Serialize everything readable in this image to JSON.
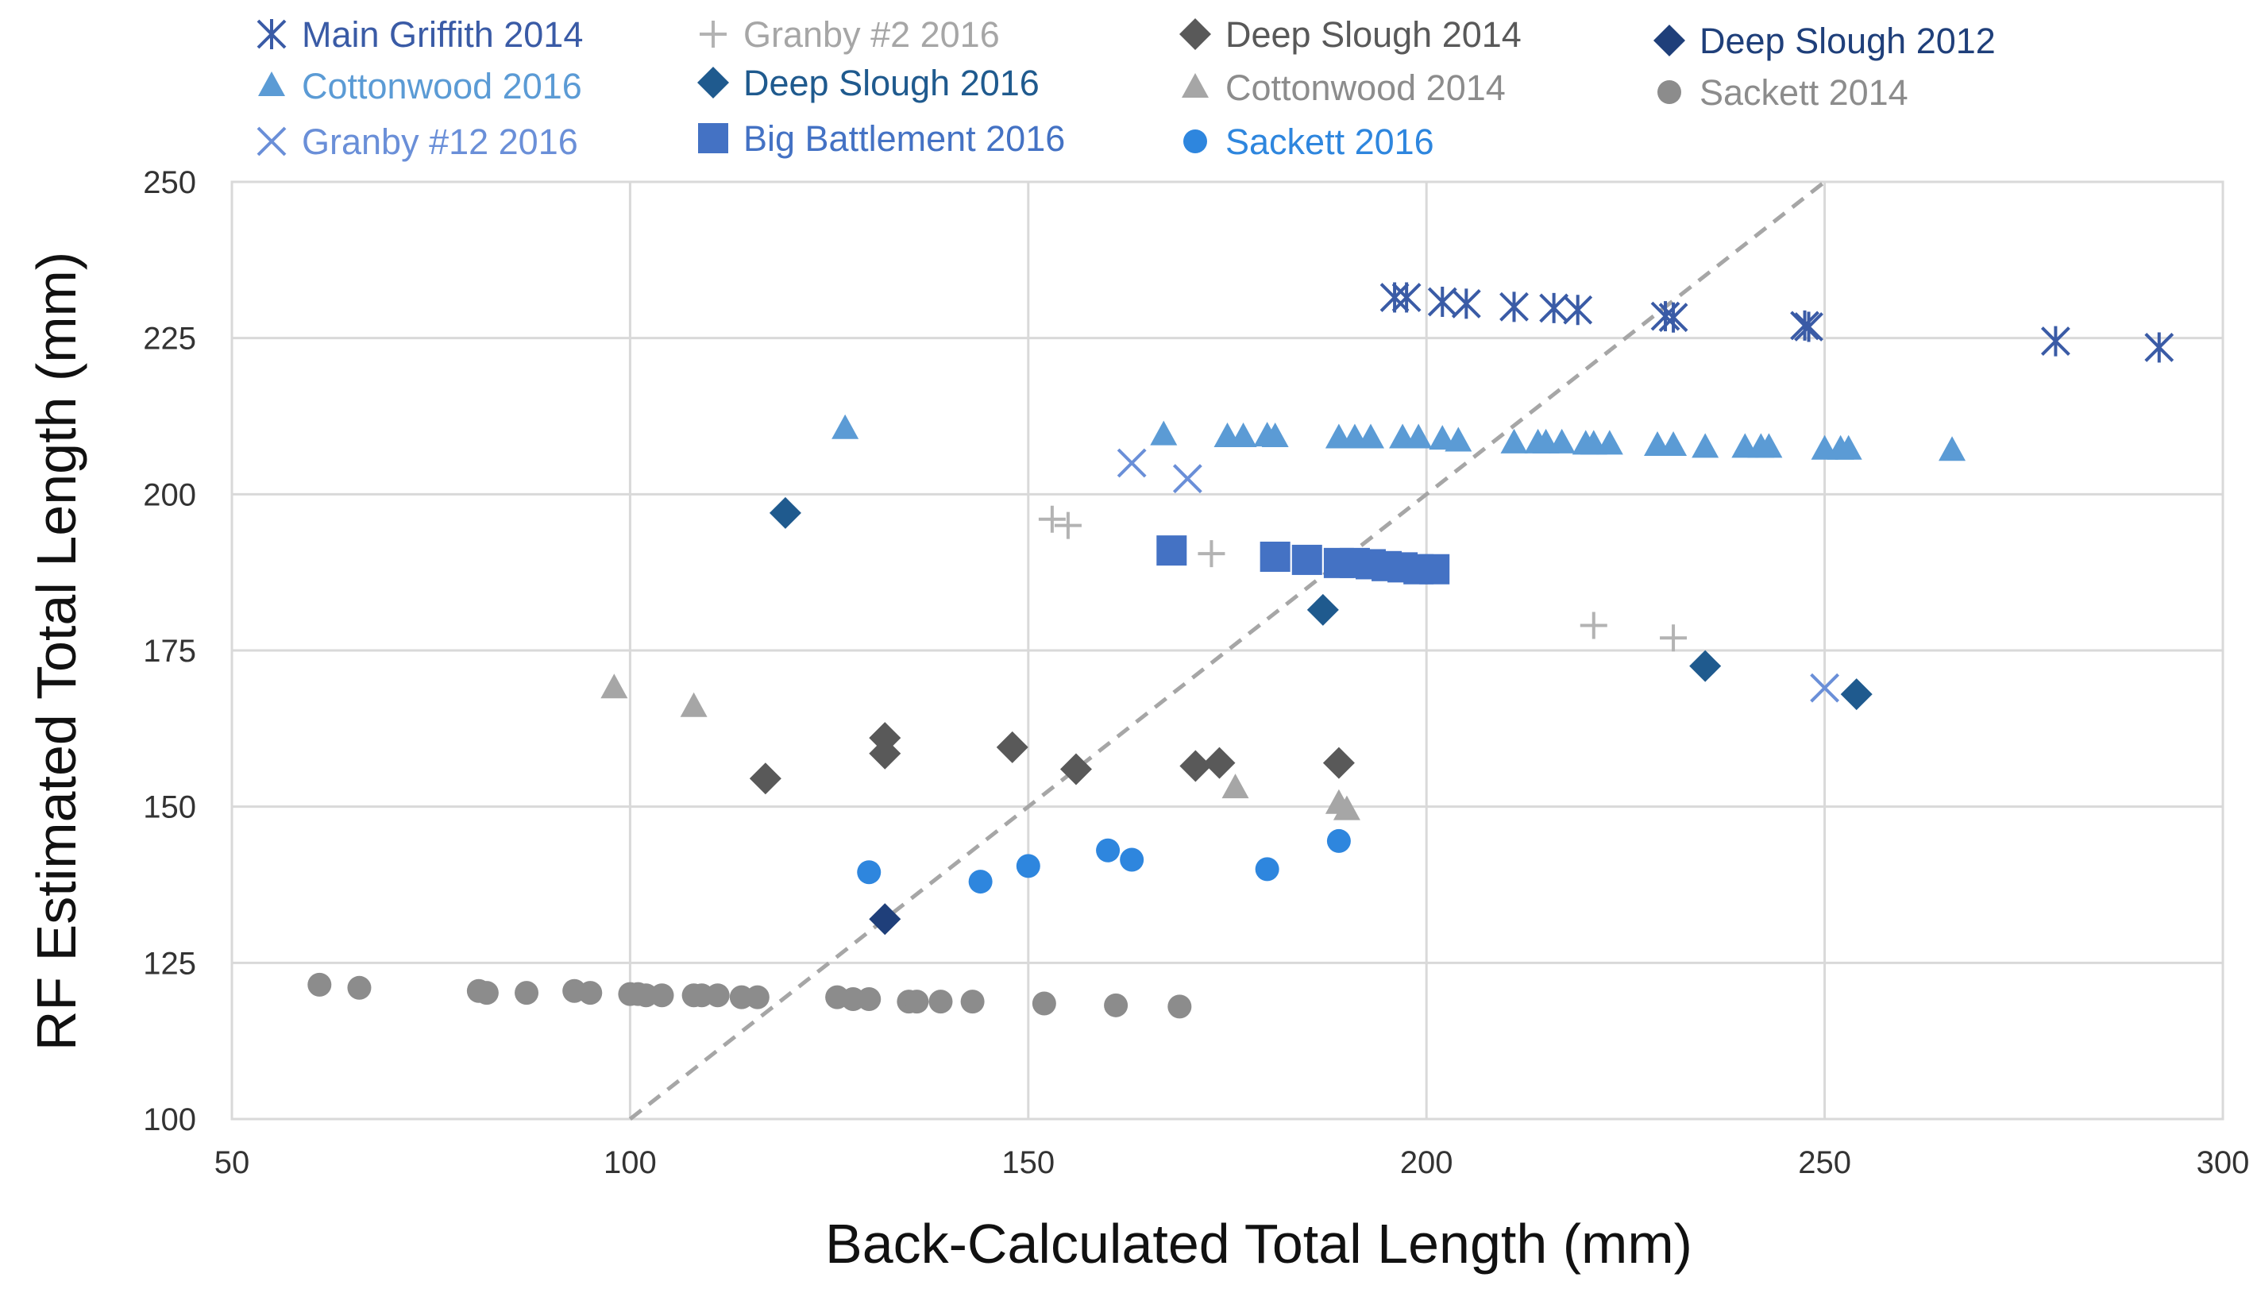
{
  "chart_data": {
    "type": "scatter",
    "title": "",
    "xlabel": "Back-Calculated Total Length (mm)",
    "ylabel": "RF Estimated Total Length (mm)",
    "xlim": [
      50,
      300
    ],
    "ylim": [
      100,
      250
    ],
    "xticks": [
      50,
      100,
      150,
      200,
      250,
      300
    ],
    "yticks": [
      100,
      125,
      150,
      175,
      200,
      225,
      250
    ],
    "grid": true,
    "legend_position": "top",
    "reference_line": {
      "name": "1:1 line",
      "style": "dashed",
      "color": "#A6A6A6",
      "points": [
        [
          100,
          100
        ],
        [
          250,
          250
        ]
      ]
    },
    "series": [
      {
        "name": "Main Griffith 2014",
        "marker": "asterisk",
        "color": "#3A5BA6",
        "points": [
          [
            196,
            231.5
          ],
          [
            197.5,
            231.5
          ],
          [
            202,
            230.8
          ],
          [
            205,
            230.5
          ],
          [
            211,
            230
          ],
          [
            216,
            229.8
          ],
          [
            219,
            229.5
          ],
          [
            230,
            228.5
          ],
          [
            231,
            228.3
          ],
          [
            247.5,
            227
          ],
          [
            248,
            226.8
          ],
          [
            279,
            224.5
          ],
          [
            292,
            223.5
          ]
        ]
      },
      {
        "name": "Cottonwood 2016",
        "marker": "triangle",
        "color": "#5B9BD5",
        "points": [
          [
            127,
            210.5
          ],
          [
            167,
            209.5
          ],
          [
            175,
            209.2
          ],
          [
            177,
            209.2
          ],
          [
            180,
            209.3
          ],
          [
            181,
            209.2
          ],
          [
            189,
            209
          ],
          [
            191,
            209
          ],
          [
            193,
            209
          ],
          [
            197,
            209
          ],
          [
            199,
            209
          ],
          [
            202,
            208.8
          ],
          [
            204,
            208.5
          ],
          [
            211,
            208.2
          ],
          [
            214,
            208.2
          ],
          [
            215,
            208.2
          ],
          [
            217,
            208.2
          ],
          [
            220,
            208
          ],
          [
            221,
            208
          ],
          [
            223,
            208
          ],
          [
            229,
            207.8
          ],
          [
            231,
            207.8
          ],
          [
            235,
            207.5
          ],
          [
            240,
            207.5
          ],
          [
            242,
            207.5
          ],
          [
            243,
            207.5
          ],
          [
            250,
            207.2
          ],
          [
            252,
            207.2
          ],
          [
            253,
            207.2
          ],
          [
            266,
            207
          ]
        ]
      },
      {
        "name": "Granby #12 2016",
        "marker": "x",
        "color": "#6A8FD8",
        "points": [
          [
            163,
            205
          ],
          [
            170,
            202.5
          ],
          [
            250,
            169
          ]
        ]
      },
      {
        "name": "Granby #2 2016",
        "marker": "plus",
        "color": "#B3B3B3",
        "points": [
          [
            153,
            196
          ],
          [
            155,
            195
          ],
          [
            173,
            190.5
          ],
          [
            221,
            179
          ],
          [
            231,
            177
          ]
        ]
      },
      {
        "name": "Deep Slough 2016",
        "marker": "diamond",
        "color": "#1F5A8E",
        "points": [
          [
            119.5,
            197
          ],
          [
            187,
            181.5
          ],
          [
            235,
            172.5
          ],
          [
            254,
            168
          ]
        ]
      },
      {
        "name": "Big Battlement 2016",
        "marker": "square",
        "color": "#4472C4",
        "points": [
          [
            168,
            191
          ],
          [
            181,
            190
          ],
          [
            185,
            189.5
          ],
          [
            189,
            189
          ],
          [
            191,
            189
          ],
          [
            193,
            188.8
          ],
          [
            195,
            188.5
          ],
          [
            197,
            188.3
          ],
          [
            199,
            188
          ],
          [
            201,
            188
          ]
        ]
      },
      {
        "name": "Deep Slough 2014",
        "marker": "diamond",
        "color": "#595959",
        "points": [
          [
            117,
            154.5
          ],
          [
            132,
            161
          ],
          [
            132,
            158.5
          ],
          [
            148,
            159.5
          ],
          [
            156,
            156
          ],
          [
            171,
            156.5
          ],
          [
            174,
            157
          ],
          [
            189,
            157
          ]
        ]
      },
      {
        "name": "Cottonwood 2014",
        "marker": "triangle",
        "color": "#A6A6A6",
        "points": [
          [
            98,
            169
          ],
          [
            108,
            166
          ],
          [
            176,
            153
          ],
          [
            189,
            150.5
          ],
          [
            190,
            149.5
          ]
        ]
      },
      {
        "name": "Sackett 2016",
        "marker": "circle",
        "color": "#2E86DE",
        "points": [
          [
            130,
            139.5
          ],
          [
            144,
            138
          ],
          [
            150,
            140.5
          ],
          [
            160,
            143
          ],
          [
            163,
            141.5
          ],
          [
            180,
            140
          ],
          [
            189,
            144.5
          ]
        ]
      },
      {
        "name": "Deep Slough 2012",
        "marker": "diamond",
        "color": "#1F3F7A",
        "points": [
          [
            132,
            132
          ]
        ]
      },
      {
        "name": "Sackett 2014",
        "marker": "circle",
        "color": "#8C8C8C",
        "points": [
          [
            61,
            121.5
          ],
          [
            66,
            121
          ],
          [
            81,
            120.5
          ],
          [
            82,
            120.2
          ],
          [
            87,
            120.2
          ],
          [
            93,
            120.5
          ],
          [
            95,
            120.2
          ],
          [
            100,
            120
          ],
          [
            101,
            120
          ],
          [
            102,
            119.8
          ],
          [
            104,
            119.8
          ],
          [
            108,
            119.8
          ],
          [
            109,
            119.8
          ],
          [
            111,
            119.8
          ],
          [
            114,
            119.5
          ],
          [
            116,
            119.5
          ],
          [
            126,
            119.5
          ],
          [
            128,
            119.2
          ],
          [
            130,
            119.2
          ],
          [
            135,
            118.8
          ],
          [
            136,
            118.8
          ],
          [
            139,
            118.8
          ],
          [
            143,
            118.8
          ],
          [
            152,
            118.5
          ],
          [
            161,
            118.2
          ],
          [
            169,
            118
          ]
        ]
      }
    ],
    "legend": [
      {
        "label": "Main Griffith 2014",
        "marker": "asterisk",
        "color": "#3A5BA6",
        "text_color": "#3A5BA6"
      },
      {
        "label": "Granby #2 2016",
        "marker": "plus",
        "color": "#B3B3B3",
        "text_color": "#A6A6A6"
      },
      {
        "label": "Deep Slough 2014",
        "marker": "diamond",
        "color": "#595959",
        "text_color": "#595959"
      },
      {
        "label": "Deep Slough 2012",
        "marker": "diamond",
        "color": "#1F3F7A",
        "text_color": "#1F3F7A"
      },
      {
        "label": "Cottonwood 2016",
        "marker": "triangle",
        "color": "#5B9BD5",
        "text_color": "#5B9BD5"
      },
      {
        "label": "Deep Slough 2016",
        "marker": "diamond",
        "color": "#1F5A8E",
        "text_color": "#1F5A8E"
      },
      {
        "label": "Cottonwood 2014",
        "marker": "triangle",
        "color": "#A6A6A6",
        "text_color": "#8C8C8C"
      },
      {
        "label": "Sackett 2014",
        "marker": "circle",
        "color": "#8C8C8C",
        "text_color": "#8C8C8C"
      },
      {
        "label": "Granby #12 2016",
        "marker": "x",
        "color": "#6A8FD8",
        "text_color": "#6A8FD8"
      },
      {
        "label": "Big Battlement 2016",
        "marker": "square",
        "color": "#4472C4",
        "text_color": "#4472C4"
      },
      {
        "label": "Sackett 2016",
        "marker": "circle",
        "color": "#2E86DE",
        "text_color": "#2E86DE"
      }
    ]
  }
}
